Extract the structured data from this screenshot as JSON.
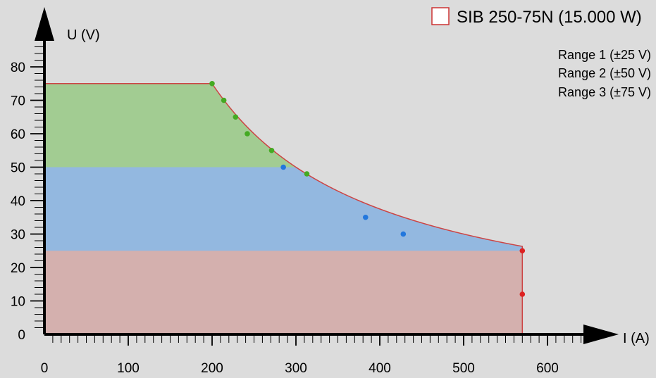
{
  "chart_data": {
    "type": "area",
    "title": "",
    "legend": {
      "label": "SIB 250-75N (15.000 W)",
      "swatch_color": "#cc3333",
      "placement": "top-right"
    },
    "xlabel": "I (A)",
    "ylabel": "U (V)",
    "xlim": [
      0,
      650
    ],
    "ylim": [
      0,
      88
    ],
    "x_ticks": [
      0,
      100,
      200,
      300,
      400,
      500,
      600
    ],
    "y_ticks": [
      0,
      10,
      20,
      30,
      40,
      50,
      60,
      70,
      80
    ],
    "x_minor_step": 10,
    "y_minor_step": 2,
    "grid": false,
    "power_limit_w": 15000,
    "series": [
      {
        "name": "Range 1 (±25 V)",
        "color": "#dd2222",
        "fill": "#d4b0ae",
        "voltage_max": 25,
        "current_max": 570,
        "points": [
          {
            "x": 570,
            "y": 25
          },
          {
            "x": 570,
            "y": 12
          }
        ]
      },
      {
        "name": "Range 2 (±50 V)",
        "color": "#2277dd",
        "fill": "#93b8e0",
        "voltage_max": 50,
        "current_max": 570,
        "points": [
          {
            "x": 285,
            "y": 50
          },
          {
            "x": 383,
            "y": 35
          },
          {
            "x": 428,
            "y": 30
          }
        ]
      },
      {
        "name": "Range 3 (±75 V)",
        "color": "#44aa22",
        "fill": "#a2cc92",
        "voltage_max": 75,
        "current_max": 570,
        "points": [
          {
            "x": 200,
            "y": 75
          },
          {
            "x": 214,
            "y": 70
          },
          {
            "x": 228,
            "y": 65
          },
          {
            "x": 242,
            "y": 60
          },
          {
            "x": 271,
            "y": 55
          },
          {
            "x": 313,
            "y": 48
          }
        ]
      }
    ]
  }
}
